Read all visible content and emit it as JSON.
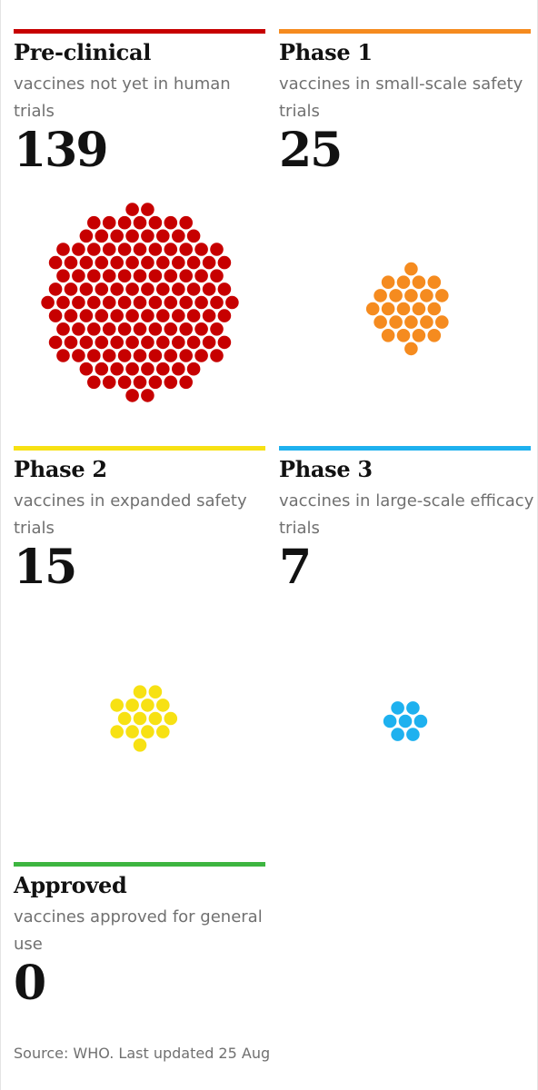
{
  "chart_data": {
    "type": "dot-cluster",
    "stages": [
      {
        "name": "Pre-clinical",
        "description": "vaccines not yet in human trials",
        "count": 139,
        "color": "#c70000"
      },
      {
        "name": "Phase 1",
        "description": "vaccines in small-scale safety trials",
        "count": 25,
        "color": "#f58b1f"
      },
      {
        "name": "Phase 2",
        "description": "vaccines in expanded safety trials",
        "count": 15,
        "color": "#f7e113"
      },
      {
        "name": "Phase 3",
        "description": "vaccines in large-scale efficacy trials",
        "count": 7,
        "color": "#1eb1ef"
      },
      {
        "name": "Approved",
        "description": "vaccines approved for general use",
        "count": 0,
        "color": "#3db540"
      }
    ]
  },
  "source": "Source: WHO. Last updated 25 Aug"
}
